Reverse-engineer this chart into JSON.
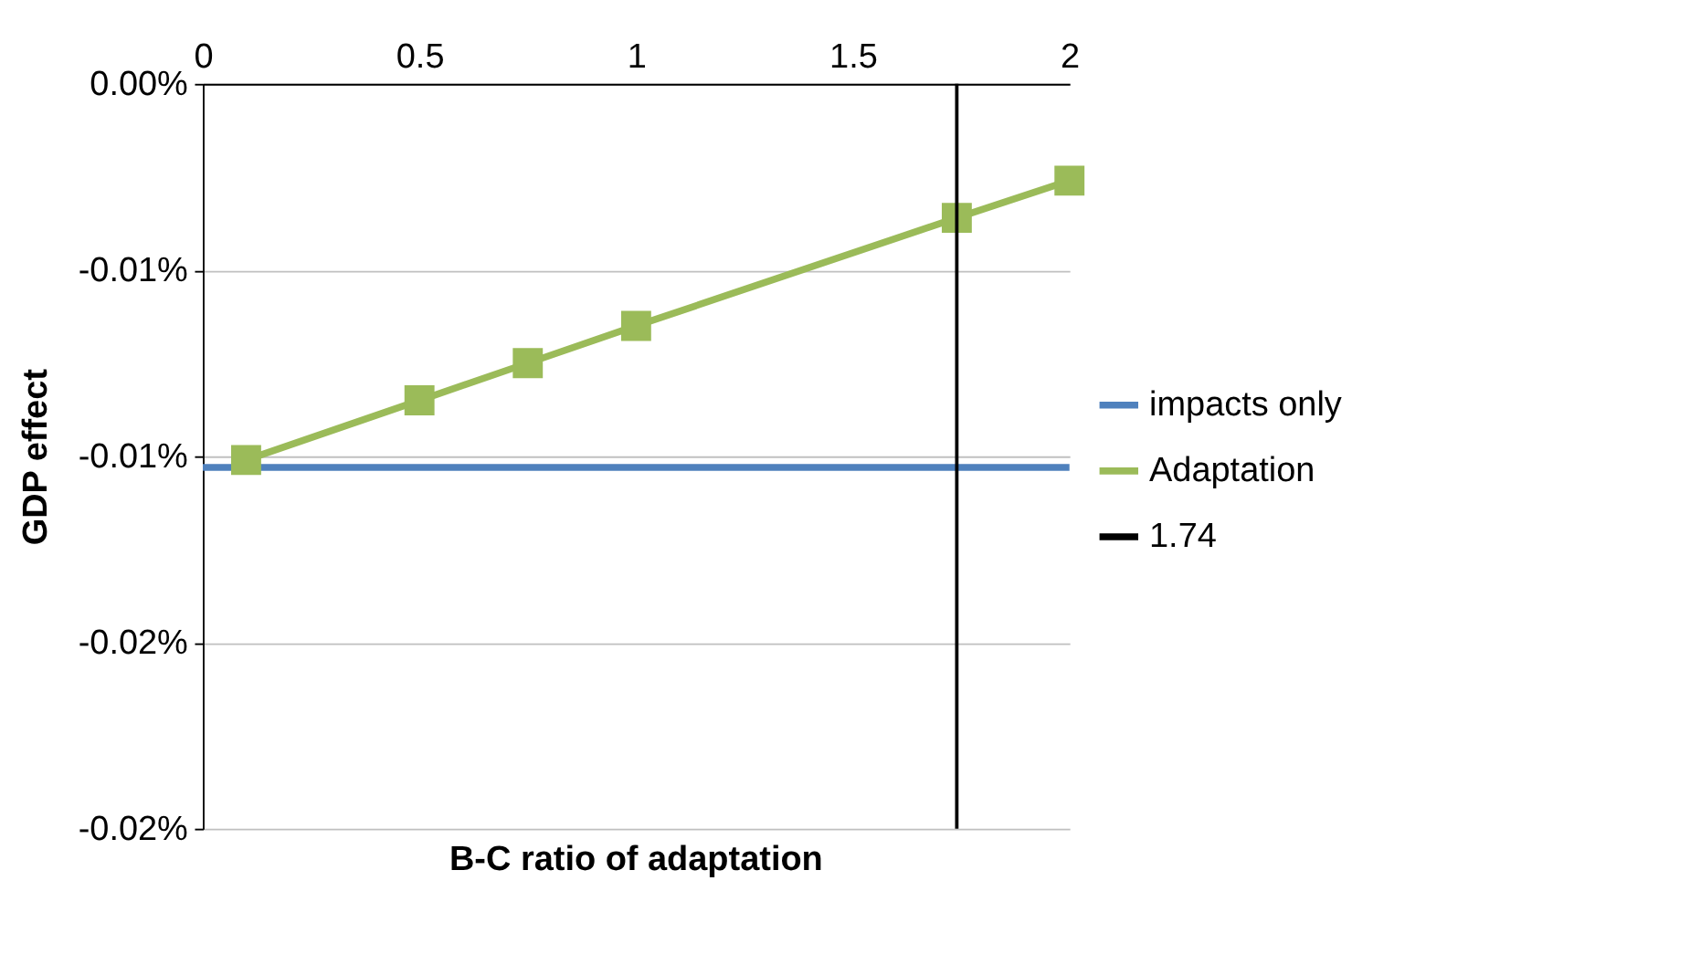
{
  "chart_data": {
    "type": "line",
    "xlabel": "B-C ratio of adaptation",
    "ylabel": "GDP effect",
    "xlim": [
      0,
      2
    ],
    "xticks": [
      0,
      0.5,
      1,
      1.5,
      2
    ],
    "ylim": [
      -0.02,
      0
    ],
    "yticks": [
      {
        "value": 0,
        "label": "0.00%"
      },
      {
        "value": -0.005,
        "label": "-0.01%"
      },
      {
        "value": -0.01,
        "label": "-0.01%"
      },
      {
        "value": -0.015,
        "label": "-0.02%"
      },
      {
        "value": -0.02,
        "label": "-0.02%"
      }
    ],
    "grid": "y",
    "legend": "right",
    "marker": "none",
    "series": [
      {
        "name": "impacts only",
        "color": "#4f81bd",
        "x": [
          0,
          2
        ],
        "values": [
          -0.0103,
          -0.0103
        ]
      },
      {
        "name": "Adaptation",
        "color": "#9bbb59",
        "marker": "square",
        "x": [
          0.1,
          0.5,
          0.75,
          1,
          1.74,
          2
        ],
        "values": [
          -0.0101,
          -0.0085,
          -0.0075,
          -0.0065,
          -0.0036,
          -0.0026
        ]
      },
      {
        "name": "1.74",
        "color": "#000000",
        "x": [
          1.74,
          1.74
        ],
        "values": [
          0,
          -0.02
        ]
      }
    ]
  }
}
